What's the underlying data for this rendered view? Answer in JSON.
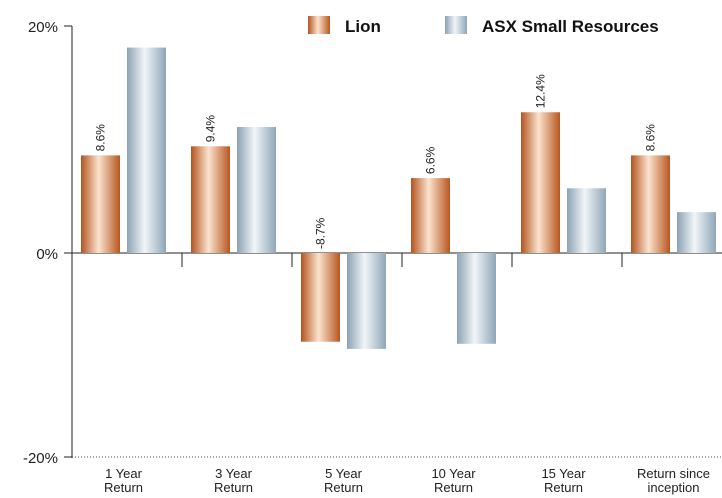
{
  "chart_data": {
    "type": "bar",
    "title": "",
    "xlabel": "",
    "ylabel": "",
    "ylim": [
      -20,
      20
    ],
    "yticks": [
      "20%",
      "0%",
      "-20%"
    ],
    "legend_position": "top-right",
    "grid": false,
    "categories": [
      [
        "1 Year",
        "Return"
      ],
      [
        "3 Year",
        "Return"
      ],
      [
        "5 Year",
        "Return"
      ],
      [
        "10 Year",
        "Return"
      ],
      [
        "15 Year",
        "Return"
      ],
      [
        "Return since",
        "inception"
      ]
    ],
    "series": [
      {
        "name": "Lion",
        "color": "#c8682e",
        "values": [
          8.6,
          9.4,
          -8.7,
          6.6,
          12.4,
          8.6
        ],
        "labels": [
          "8.6%",
          "9.4%",
          "-8.7%",
          "6.6%",
          "12.4%",
          "8.6%"
        ]
      },
      {
        "name": "ASX Small Resources",
        "color": "#9db2c1",
        "values": [
          18.1,
          11.1,
          -9.4,
          -8.9,
          5.7,
          3.6
        ]
      }
    ]
  }
}
